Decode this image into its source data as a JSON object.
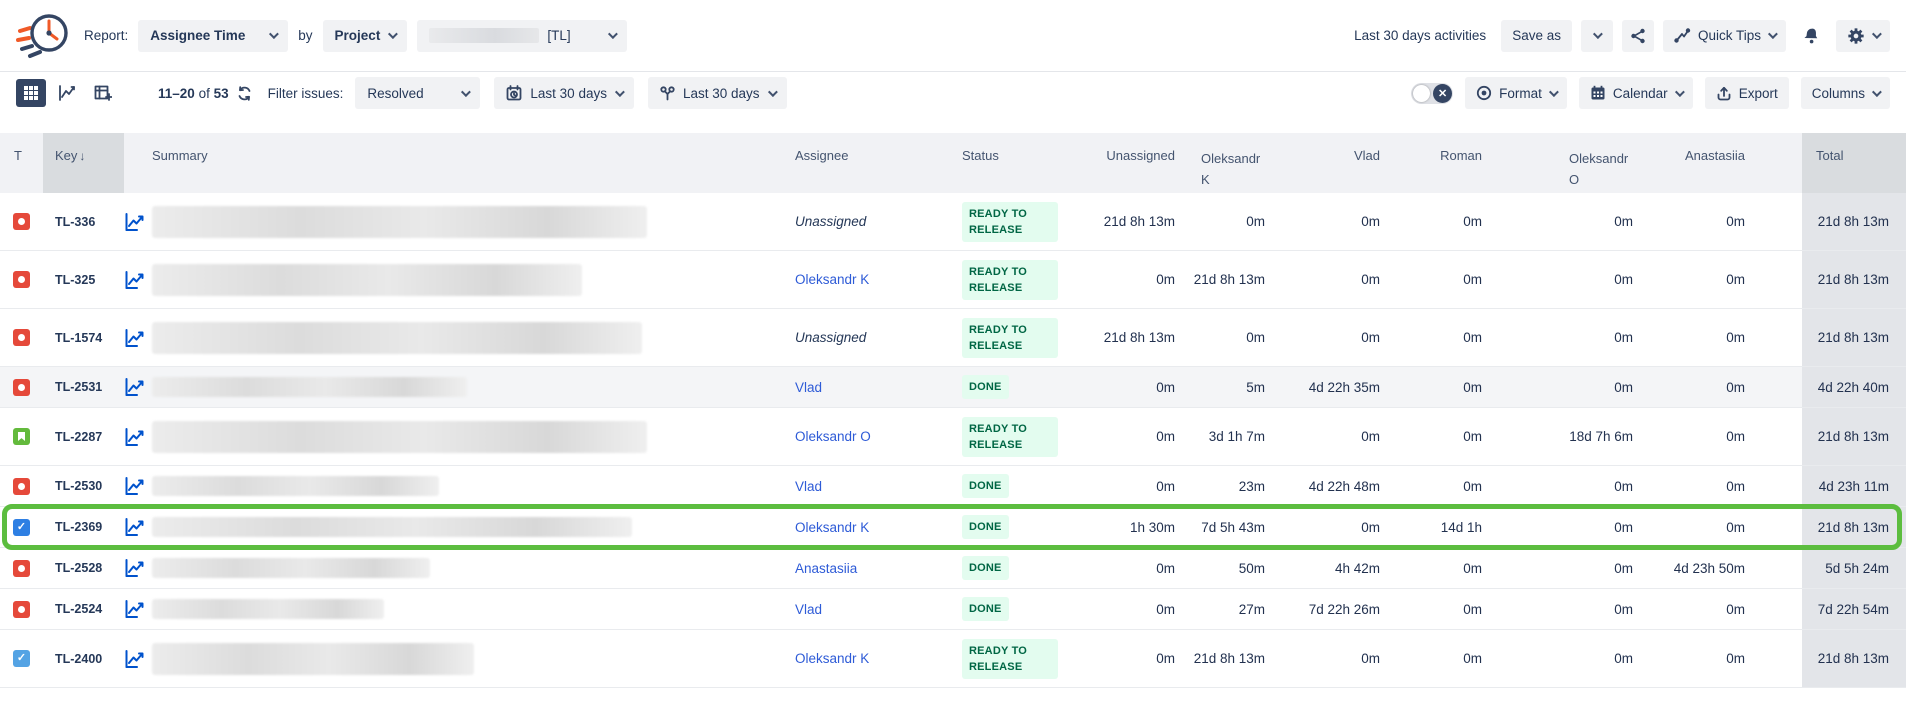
{
  "topbar": {
    "report_label": "Report:",
    "report_value": "Assignee Time",
    "by_label": "by",
    "group_value": "Project",
    "project_suffix": "[TL]",
    "activities_text": "Last 30 days activities",
    "save_as_label": "Save as",
    "quick_tips_label": "Quick Tips"
  },
  "toolbar": {
    "pagination_range": "11–20",
    "pagination_of": "of",
    "pagination_total": "53",
    "filter_label": "Filter issues:",
    "filter_value": "Resolved",
    "date_range_value": "Last 30 days",
    "worklog_range_value": "Last 30 days",
    "format_label": "Format",
    "calendar_label": "Calendar",
    "export_label": "Export",
    "columns_label": "Columns"
  },
  "colors": {
    "accent_blue": "#0052cc",
    "navy": "#344563",
    "status_green_text": "#006644",
    "status_green_bg": "#e3fcef",
    "highlight_green": "#5cbd3f",
    "bug_red": "#e5493a",
    "story_green": "#63ba3c",
    "task_blue": "#2e7fe3"
  },
  "table": {
    "headers": {
      "type": "T",
      "key": "Key",
      "sort_icon": "↓",
      "summary": "Summary",
      "assignee": "Assignee",
      "status": "Status",
      "people": [
        "Unassigned",
        "Oleksandr K",
        "Vlad",
        "Roman",
        "Oleksandr O",
        "Anastasiia"
      ],
      "total": "Total"
    },
    "rows": [
      {
        "key": "TL-336",
        "type": "bug",
        "summary_w": 495,
        "assignee": "Unassigned",
        "assignee_kind": "unassigned",
        "status": "READY TO RELEASE",
        "height": "tall",
        "values": [
          "21d 8h 13m",
          "0m",
          "0m",
          "0m",
          "0m",
          "0m"
        ],
        "total": "21d 8h 13m"
      },
      {
        "key": "TL-325",
        "type": "bug",
        "summary_w": 430,
        "assignee": "Oleksandr K",
        "assignee_kind": "link",
        "status": "READY TO RELEASE",
        "height": "tall",
        "values": [
          "0m",
          "21d 8h 13m",
          "0m",
          "0m",
          "0m",
          "0m"
        ],
        "total": "21d 8h 13m"
      },
      {
        "key": "TL-1574",
        "type": "bug",
        "summary_w": 490,
        "assignee": "Unassigned",
        "assignee_kind": "unassigned",
        "status": "READY TO RELEASE",
        "height": "tall",
        "values": [
          "21d 8h 13m",
          "0m",
          "0m",
          "0m",
          "0m",
          "0m"
        ],
        "total": "21d 8h 13m"
      },
      {
        "key": "TL-2531",
        "type": "bug",
        "summary_w": 315,
        "assignee": "Vlad",
        "assignee_kind": "link",
        "status": "DONE",
        "height": "short",
        "shaded": true,
        "values": [
          "0m",
          "5m",
          "4d 22h 35m",
          "0m",
          "0m",
          "0m"
        ],
        "total": "4d 22h 40m"
      },
      {
        "key": "TL-2287",
        "type": "story",
        "summary_w": 495,
        "assignee": "Oleksandr O",
        "assignee_kind": "link",
        "status": "READY TO RELEASE",
        "height": "tall",
        "values": [
          "0m",
          "3d 1h 7m",
          "0m",
          "0m",
          "18d 7h 6m",
          "0m"
        ],
        "total": "21d 8h 13m"
      },
      {
        "key": "TL-2530",
        "type": "bug",
        "summary_w": 287,
        "assignee": "Vlad",
        "assignee_kind": "link",
        "status": "DONE",
        "height": "short",
        "values": [
          "0m",
          "23m",
          "4d 22h 48m",
          "0m",
          "0m",
          "0m"
        ],
        "total": "4d 23h 11m"
      },
      {
        "key": "TL-2369",
        "type": "task",
        "summary_w": 480,
        "assignee": "Oleksandr K",
        "assignee_kind": "link",
        "status": "DONE",
        "height": "short",
        "highlight": true,
        "values": [
          "1h 30m",
          "7d 5h 43m",
          "0m",
          "14d 1h",
          "0m",
          "0m"
        ],
        "total": "21d 8h 13m"
      },
      {
        "key": "TL-2528",
        "type": "bug",
        "summary_w": 278,
        "assignee": "Anastasiia",
        "assignee_kind": "link",
        "status": "DONE",
        "height": "short",
        "values": [
          "0m",
          "50m",
          "4h 42m",
          "0m",
          "0m",
          "4d 23h 50m"
        ],
        "total": "5d 5h 24m"
      },
      {
        "key": "TL-2524",
        "type": "bug",
        "summary_w": 232,
        "assignee": "Vlad",
        "assignee_kind": "link",
        "status": "DONE",
        "height": "short",
        "values": [
          "0m",
          "27m",
          "7d 22h 26m",
          "0m",
          "0m",
          "0m"
        ],
        "total": "7d 22h 54m"
      },
      {
        "key": "TL-2400",
        "type": "task-light",
        "summary_w": 322,
        "assignee": "Oleksandr K",
        "assignee_kind": "link",
        "status": "READY TO RELEASE",
        "height": "tall",
        "values": [
          "0m",
          "21d 8h 13m",
          "0m",
          "0m",
          "0m",
          "0m"
        ],
        "total": "21d 8h 13m"
      }
    ]
  }
}
